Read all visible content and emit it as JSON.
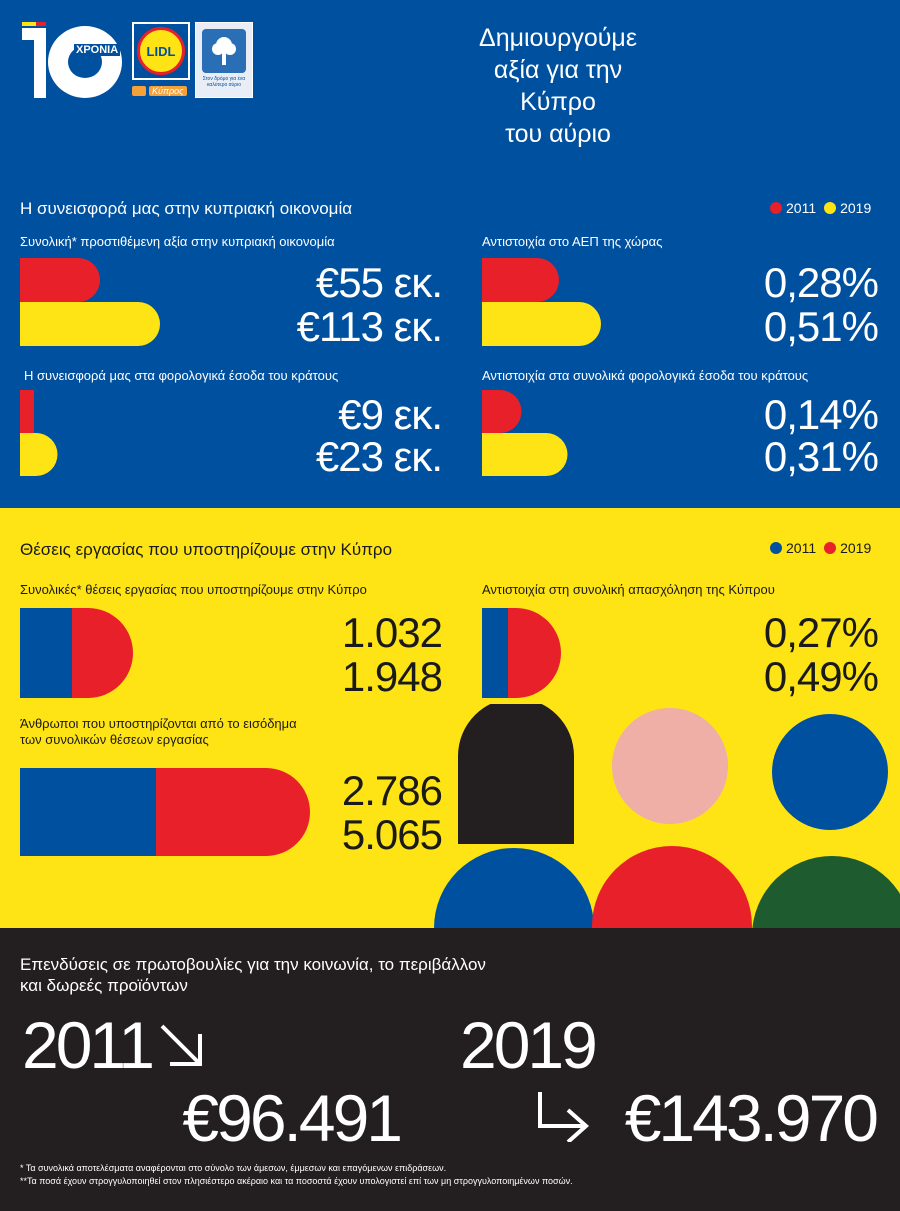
{
  "header": {
    "logo_number": "10",
    "logo_years": "ΧΡΟΝΙΑ",
    "lidl_logo_text": "LIDL",
    "lidl_sub": "Κύπρος",
    "badge_text": "Στον δρόμο για ένα καλύτερο αύριο",
    "headline": [
      "Δημιουργούμε",
      "αξία για την",
      "Κύπρο",
      "του αύριο"
    ]
  },
  "economy": {
    "title": "Η συνεισφορά μας στην κυπριακή οικονομία",
    "legend": [
      "2011",
      "2019"
    ],
    "blocks": [
      {
        "label": "Συνολική* προστιθέμενη αξία στην κυπριακή οικονομία",
        "value_2011": "€55 εκ.",
        "value_2019": "€113 εκ."
      },
      {
        "label": "Αντιστοιχία στο ΑΕΠ της χώρας",
        "value_2011": "0,28%",
        "value_2019": "0,51%"
      },
      {
        "label": "Η συνεισφορά μας στα φορολογικά έσοδα του κράτους",
        "value_2011": "€9 εκ.",
        "value_2019": "€23 εκ."
      },
      {
        "label": "Αντιστοιχία στα συνολικά φορολογικά έσοδα του κράτους",
        "value_2011": "0,14%",
        "value_2019": "0,31%"
      }
    ]
  },
  "jobs": {
    "title": "Θέσεις εργασίας που υποστηρίζουμε στην Κύπρο",
    "legend": [
      "2011",
      "2019"
    ],
    "blocks": [
      {
        "label": "Συνολικές* θέσεις εργασίας που υποστηρίζουμε στην Κύπρο",
        "value_2011": "1.032",
        "value_2019": "1.948"
      },
      {
        "label": "Αντιστοιχία στη συνολική απασχόληση της Κύπρου",
        "value_2011": "0,27%",
        "value_2019": "0,49%"
      },
      {
        "label_line1": "Άνθρωποι που υποστηρίζονται από το εισόδημα",
        "label_line2": "των συνολικών θέσεων εργασίας",
        "value_2011": "2.786",
        "value_2019": "5.065"
      }
    ]
  },
  "investments": {
    "title_line1": "Επενδύσεις σε πρωτοβουλίες για την κοινωνία, το περιβάλλον",
    "title_line2": "και δωρεές προϊόντων",
    "year_2011": "2011",
    "amount_2011": "€96.491",
    "year_2019": "2019",
    "amount_2019": "€143.970"
  },
  "footnotes": [
    "* Τα συνολικά αποτελέσματα αναφέρονται στο σύνολο των άμεσων, έμμεσων και επαγόμενων επιδράσεων.",
    "**Τα ποσά έχουν στρογγυλοποιηθεί στον πλησιέστερο ακέραιο και τα ποσοστά έχουν υπολογιστεί επί των μη στρογγυλοποιημένων ποσών."
  ],
  "colors": {
    "blue": "#0050a0",
    "yellow": "#ffe415",
    "red": "#e8202a",
    "black": "#231f20",
    "pink": "#efaea6",
    "green": "#1e5b2f"
  }
}
